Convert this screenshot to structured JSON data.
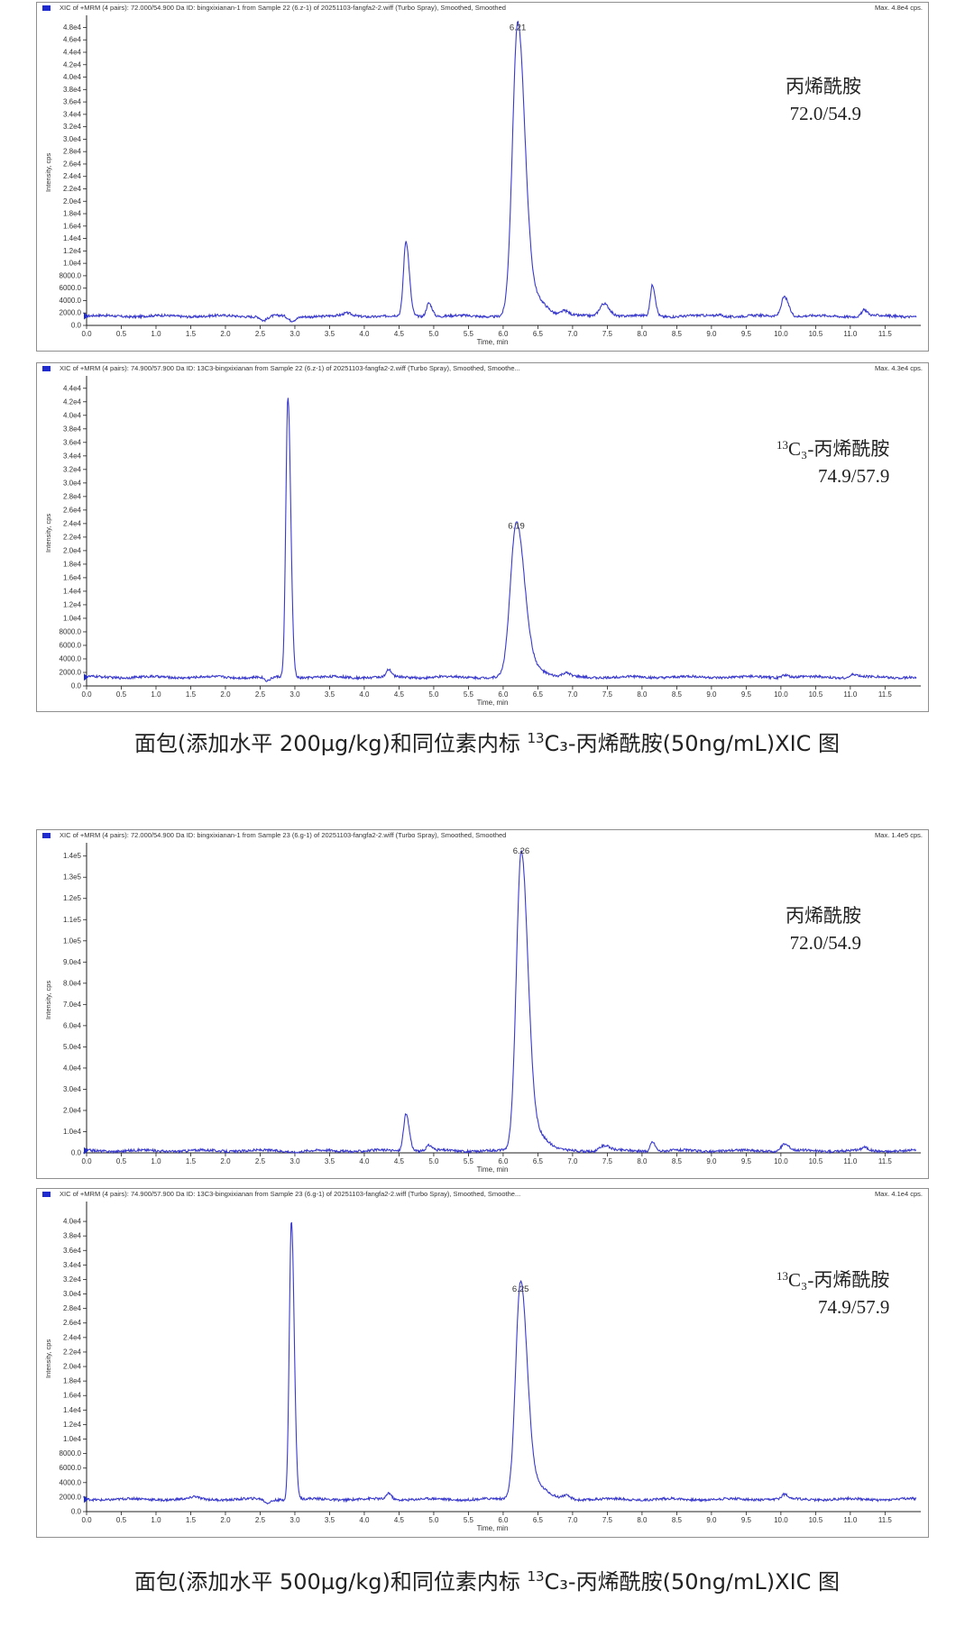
{
  "captions": {
    "fig1": {
      "pre": "面包(添加水平 200µg/kg)和同位素内标 ",
      "sup": "13",
      "post": "C₃-丙烯酰胺(50ng/mL)XIC 图"
    },
    "fig2": {
      "pre": "面包(添加水平 500µg/kg)和同位素内标 ",
      "sup": "13",
      "post": "C₃-丙烯酰胺(50ng/mL)XIC 图"
    }
  },
  "colors": {
    "trace": "#3a3acd",
    "axis": "#222222",
    "marker": "#1f2bcf"
  },
  "chart_data": [
    {
      "type": "line",
      "header": "XIC of +MRM (4 pairs): 72.000/54.900 Da ID: bingxixianan-1 from Sample 22 (6.z-1) of 20251103-fangfa2-2.wiff (Turbo Spray), Smoothed, Smoothed",
      "max_label": "Max. 4.8e4 cps.",
      "ylabel": "Intensity, cps",
      "xlabel": "Time, min",
      "compound": "丙烯酰胺",
      "compound_sup": "",
      "transition": "72.0/54.9",
      "x_ticks": [
        "0.0",
        "0.5",
        "1.0",
        "1.5",
        "2.0",
        "2.5",
        "3.0",
        "3.5",
        "4.0",
        "4.5",
        "5.0",
        "5.5",
        "6.0",
        "6.5",
        "7.0",
        "7.5",
        "8.0",
        "8.5",
        "9.0",
        "9.5",
        "10.0",
        "10.5",
        "11.0",
        "11.5"
      ],
      "y_ticks": [
        "0.0",
        "2000.0",
        "4000.0",
        "6000.0",
        "8000.0",
        "1.0e4",
        "1.2e4",
        "1.4e4",
        "1.6e4",
        "1.8e4",
        "2.0e4",
        "2.2e4",
        "2.4e4",
        "2.6e4",
        "2.8e4",
        "3.0e4",
        "3.2e4",
        "3.4e4",
        "3.6e4",
        "3.8e4",
        "4.0e4",
        "4.2e4",
        "4.4e4",
        "4.6e4",
        "4.8e4"
      ],
      "y_tick_step": 2000,
      "xlim": [
        0,
        11.95
      ],
      "ylim": [
        0,
        48500
      ],
      "baseline": 1500,
      "peaks": [
        {
          "x": 2.55,
          "y": -700,
          "w": 0.04
        },
        {
          "x": 2.95,
          "y": -800,
          "w": 0.05
        },
        {
          "x": 3.75,
          "y": 400,
          "w": 0.05
        },
        {
          "x": 4.6,
          "y": 12000,
          "w": 0.035
        },
        {
          "x": 4.93,
          "y": 2200,
          "w": 0.035
        },
        {
          "x": 6.21,
          "y": 46800,
          "w": 0.075
        },
        {
          "x": 6.45,
          "y": 3000,
          "w": 0.12
        },
        {
          "x": 6.88,
          "y": 800,
          "w": 0.05
        },
        {
          "x": 7.45,
          "y": 2100,
          "w": 0.06
        },
        {
          "x": 8.15,
          "y": 5000,
          "w": 0.03
        },
        {
          "x": 9.1,
          "y": 300,
          "w": 0.04
        },
        {
          "x": 10.05,
          "y": 3200,
          "w": 0.045
        },
        {
          "x": 11.2,
          "y": 1000,
          "w": 0.035
        }
      ],
      "peak_labels": [
        {
          "x": 6.21,
          "y": 46800,
          "text": "6.21"
        }
      ]
    },
    {
      "type": "line",
      "header": "XIC of +MRM (4 pairs): 74.900/57.900 Da ID: 13C3-bingxixianan from Sample 22 (6.z-1) of 20251103-fangfa2-2.wiff (Turbo Spray), Smoothed, Smoothe...",
      "max_label": "Max. 4.3e4 cps.",
      "ylabel": "Intensity, cps",
      "xlabel": "Time, min",
      "compound": "C₃-丙烯酰胺",
      "compound_sup": "13",
      "transition": "74.9/57.9",
      "x_ticks": [
        "0.0",
        "0.5",
        "1.0",
        "1.5",
        "2.0",
        "2.5",
        "3.0",
        "3.5",
        "4.0",
        "4.5",
        "5.0",
        "5.5",
        "6.0",
        "6.5",
        "7.0",
        "7.5",
        "8.0",
        "8.5",
        "9.0",
        "9.5",
        "10.0",
        "10.5",
        "11.0",
        "11.5"
      ],
      "y_ticks": [
        "0.0",
        "2000.0",
        "4000.0",
        "6000.0",
        "8000.0",
        "1.0e4",
        "1.2e4",
        "1.4e4",
        "1.6e4",
        "1.8e4",
        "2.0e4",
        "2.2e4",
        "2.4e4",
        "2.6e4",
        "2.8e4",
        "3.0e4",
        "3.2e4",
        "3.4e4",
        "3.6e4",
        "3.8e4",
        "4.0e4",
        "4.2e4",
        "4.4e4"
      ],
      "y_tick_step": 2000,
      "xlim": [
        0,
        11.95
      ],
      "ylim": [
        0,
        44500
      ],
      "baseline": 1300,
      "peaks": [
        {
          "x": 2.6,
          "y": -600,
          "w": 0.04
        },
        {
          "x": 2.9,
          "y": 41500,
          "w": 0.03
        },
        {
          "x": 4.35,
          "y": 1000,
          "w": 0.03
        },
        {
          "x": 6.19,
          "y": 22600,
          "w": 0.085
        },
        {
          "x": 6.42,
          "y": 1500,
          "w": 0.12
        },
        {
          "x": 6.9,
          "y": 500,
          "w": 0.05
        },
        {
          "x": 10.05,
          "y": 400,
          "w": 0.04
        },
        {
          "x": 11.05,
          "y": 400,
          "w": 0.04
        }
      ],
      "peak_labels": [
        {
          "x": 6.19,
          "y": 22600,
          "text": "6.19"
        }
      ]
    },
    {
      "type": "line",
      "header": "XIC of +MRM (4 pairs): 72.000/54.900 Da ID: bingxixianan-1 from Sample 23 (6.g-1) of 20251103-fangfa2-2.wiff (Turbo Spray), Smoothed, Smoothed",
      "max_label": "Max. 1.4e5 cps.",
      "ylabel": "Intensity, cps",
      "xlabel": "Time, min",
      "compound": "丙烯酰胺",
      "compound_sup": "",
      "transition": "72.0/54.9",
      "x_ticks": [
        "0.0",
        "0.5",
        "1.0",
        "1.5",
        "2.0",
        "2.5",
        "3.0",
        "3.5",
        "4.0",
        "4.5",
        "5.0",
        "5.5",
        "6.0",
        "6.5",
        "7.0",
        "7.5",
        "8.0",
        "8.5",
        "9.0",
        "9.5",
        "10.0",
        "10.5",
        "11.0",
        "11.5"
      ],
      "y_ticks": [
        "0.0",
        "1.0e4",
        "2.0e4",
        "3.0e4",
        "4.0e4",
        "5.0e4",
        "6.0e4",
        "7.0e4",
        "8.0e4",
        "9.0e4",
        "1.0e5",
        "1.1e5",
        "1.2e5",
        "1.3e5",
        "1.4e5"
      ],
      "y_tick_step": 10000,
      "xlim": [
        0,
        11.95
      ],
      "ylim": [
        0,
        142000
      ],
      "baseline": 1000,
      "peaks": [
        {
          "x": 3.0,
          "y": -500,
          "w": 0.05
        },
        {
          "x": 4.6,
          "y": 17500,
          "w": 0.035
        },
        {
          "x": 4.93,
          "y": 2500,
          "w": 0.035
        },
        {
          "x": 6.26,
          "y": 139000,
          "w": 0.07
        },
        {
          "x": 6.45,
          "y": 9000,
          "w": 0.12
        },
        {
          "x": 7.45,
          "y": 2500,
          "w": 0.06
        },
        {
          "x": 8.15,
          "y": 4500,
          "w": 0.03
        },
        {
          "x": 10.05,
          "y": 3200,
          "w": 0.045
        },
        {
          "x": 11.2,
          "y": 1500,
          "w": 0.035
        }
      ],
      "peak_labels": [
        {
          "x": 6.26,
          "y": 139000,
          "text": "6.26"
        }
      ]
    },
    {
      "type": "line",
      "header": "XIC of +MRM (4 pairs): 74.900/57.900 Da ID: 13C3-bingxixianan from Sample 23 (6.g-1) of 20251103-fangfa2-2.wiff (Turbo Spray), Smoothed, Smoothe...",
      "max_label": "Max. 4.1e4 cps.",
      "ylabel": "Intensity, cps",
      "xlabel": "Time, min",
      "compound": "C₃-丙烯酰胺",
      "compound_sup": "13",
      "transition": "74.9/57.9",
      "x_ticks": [
        "0.0",
        "0.5",
        "1.0",
        "1.5",
        "2.0",
        "2.5",
        "3.0",
        "3.5",
        "4.0",
        "4.5",
        "5.0",
        "5.5",
        "6.0",
        "6.5",
        "7.0",
        "7.5",
        "8.0",
        "8.5",
        "9.0",
        "9.5",
        "10.0",
        "10.5",
        "11.0",
        "11.5"
      ],
      "y_ticks": [
        "0.0",
        "2000.0",
        "4000.0",
        "6000.0",
        "8000.0",
        "1.0e4",
        "1.2e4",
        "1.4e4",
        "1.6e4",
        "1.8e4",
        "2.0e4",
        "2.2e4",
        "2.4e4",
        "2.6e4",
        "2.8e4",
        "3.0e4",
        "3.2e4",
        "3.4e4",
        "3.6e4",
        "3.8e4",
        "4.0e4"
      ],
      "y_tick_step": 2000,
      "xlim": [
        0,
        11.95
      ],
      "ylim": [
        0,
        41500
      ],
      "baseline": 1700,
      "peaks": [
        {
          "x": 1.55,
          "y": 300,
          "w": 0.04
        },
        {
          "x": 2.6,
          "y": -500,
          "w": 0.04
        },
        {
          "x": 2.95,
          "y": 38500,
          "w": 0.03
        },
        {
          "x": 4.35,
          "y": 900,
          "w": 0.03
        },
        {
          "x": 6.25,
          "y": 29700,
          "w": 0.07
        },
        {
          "x": 6.45,
          "y": 2000,
          "w": 0.12
        },
        {
          "x": 6.9,
          "y": 500,
          "w": 0.05
        },
        {
          "x": 10.05,
          "y": 600,
          "w": 0.04
        }
      ],
      "peak_labels": [
        {
          "x": 6.25,
          "y": 29700,
          "text": "6.25"
        }
      ]
    }
  ]
}
